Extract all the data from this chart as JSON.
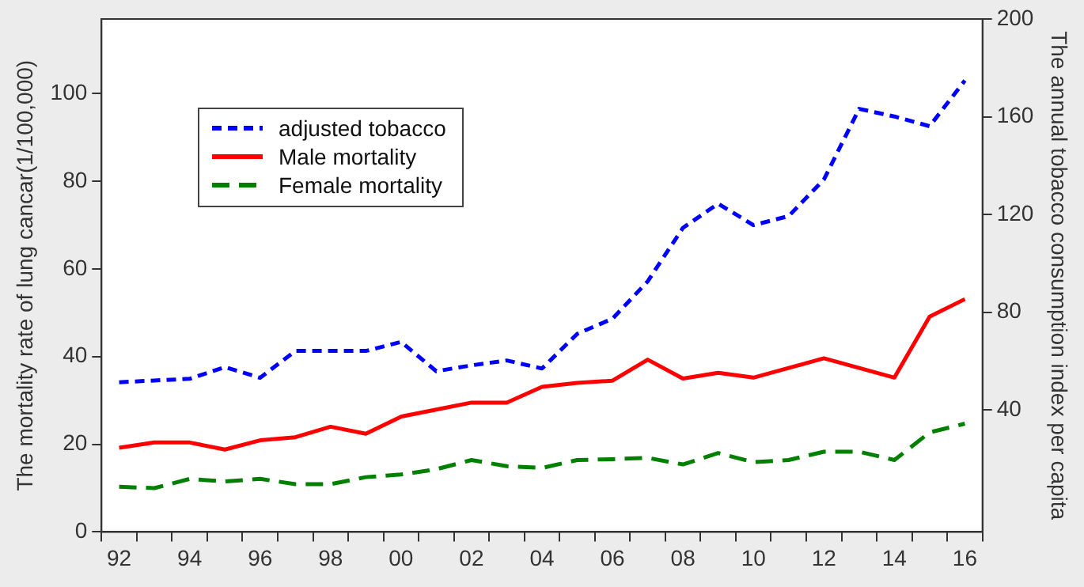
{
  "chart_data": {
    "type": "line",
    "xlabel": null,
    "ylabel": "The mortality rate of lung cancar(1/100,000)",
    "y2label": "The annual tobacco consumption index per capita",
    "categories": [
      "92",
      null,
      "94",
      null,
      "96",
      null,
      "98",
      null,
      "00",
      null,
      "02",
      null,
      "04",
      null,
      "06",
      null,
      "08",
      null,
      "10",
      null,
      "12",
      null,
      "14",
      null,
      "16"
    ],
    "series": [
      {
        "name": "adjusted tobacco",
        "color": "#0000ff",
        "axis": "y2",
        "line_style": "dotted",
        "values": [
          51.3,
          52,
          52.7,
          57.5,
          53.1,
          64.1,
          64.1,
          64.1,
          67.8,
          55.8,
          58.2,
          60.2,
          56.9,
          71.1,
          77.3,
          92.6,
          114.5,
          124.4,
          115.6,
          119.3,
          134.3,
          163.2,
          160.1,
          156.1,
          174.8
        ]
      },
      {
        "name": "Male mortality",
        "color": "#ff0000",
        "axis": "y",
        "line_style": "solid",
        "values": [
          19.2,
          20.4,
          20.4,
          18.8,
          20.9,
          21.6,
          24.0,
          22.4,
          26.3,
          27.9,
          29.5,
          29.5,
          33.1,
          34.0,
          34.5,
          39.3,
          35.0,
          36.3,
          35.2,
          37.4,
          39.6,
          37.4,
          35.2,
          49.1,
          53.1
        ]
      },
      {
        "name": "Female mortality",
        "color": "#008000",
        "axis": "y",
        "line_style": "dashed",
        "values": [
          10.3,
          10.0,
          12.1,
          11.5,
          12.1,
          10.9,
          10.9,
          12.5,
          13.1,
          14.3,
          16.4,
          15.0,
          14.6,
          16.4,
          16.6,
          16.9,
          15.4,
          18.0,
          15.9,
          16.4,
          18.3,
          18.3,
          16.4,
          22.7,
          24.7
        ]
      }
    ],
    "ylim": [
      0,
      117
    ],
    "yticks": [
      0,
      20,
      40,
      60,
      80,
      100
    ],
    "y2lim": [
      -10,
      200
    ],
    "y2ticks": [
      40,
      80,
      120,
      160,
      200
    ],
    "grid": false,
    "legend": "top left",
    "marker": "none"
  }
}
